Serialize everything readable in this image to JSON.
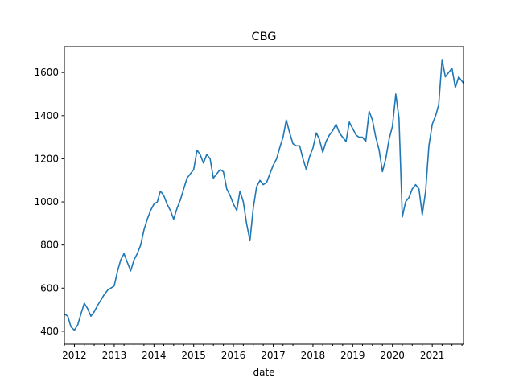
{
  "chart_data": {
    "type": "line",
    "title": "CBG",
    "xlabel": "date",
    "ylabel": "",
    "x_tick_labels": [
      "2012",
      "2013",
      "2014",
      "2015",
      "2016",
      "2017",
      "2018",
      "2019",
      "2020",
      "2021"
    ],
    "x_tick_dates": [
      "2012-01-01",
      "2013-01-01",
      "2014-01-01",
      "2015-01-01",
      "2016-01-01",
      "2017-01-01",
      "2018-01-01",
      "2019-01-01",
      "2020-01-01",
      "2021-01-01"
    ],
    "y_ticks": [
      400,
      600,
      800,
      1000,
      1200,
      1400,
      1600
    ],
    "xlim": [
      "2011-10-01",
      "2021-10-15"
    ],
    "ylim": [
      340,
      1720
    ],
    "grid": false,
    "colors": {
      "series": "#1f77b4"
    },
    "series": [
      {
        "name": "",
        "x": [
          "2011-10-01",
          "2011-11-01",
          "2011-12-01",
          "2012-01-01",
          "2012-02-01",
          "2012-03-01",
          "2012-04-01",
          "2012-05-01",
          "2012-06-01",
          "2012-07-01",
          "2012-08-01",
          "2012-09-01",
          "2012-10-01",
          "2012-11-01",
          "2012-12-01",
          "2013-01-01",
          "2013-02-01",
          "2013-03-01",
          "2013-04-01",
          "2013-05-01",
          "2013-06-01",
          "2013-07-01",
          "2013-08-01",
          "2013-09-01",
          "2013-10-01",
          "2013-11-01",
          "2013-12-01",
          "2014-01-01",
          "2014-02-01",
          "2014-03-01",
          "2014-04-01",
          "2014-05-01",
          "2014-06-01",
          "2014-07-01",
          "2014-08-01",
          "2014-09-01",
          "2014-10-01",
          "2014-11-01",
          "2014-12-01",
          "2015-01-01",
          "2015-02-01",
          "2015-03-01",
          "2015-04-01",
          "2015-05-01",
          "2015-06-01",
          "2015-07-01",
          "2015-08-01",
          "2015-09-01",
          "2015-10-01",
          "2015-11-01",
          "2015-12-01",
          "2016-01-01",
          "2016-02-01",
          "2016-03-01",
          "2016-04-01",
          "2016-05-01",
          "2016-06-01",
          "2016-07-01",
          "2016-08-01",
          "2016-09-01",
          "2016-10-01",
          "2016-11-01",
          "2016-12-01",
          "2017-01-01",
          "2017-02-01",
          "2017-03-01",
          "2017-04-01",
          "2017-05-01",
          "2017-06-01",
          "2017-07-01",
          "2017-08-01",
          "2017-09-01",
          "2017-10-01",
          "2017-11-01",
          "2017-12-01",
          "2018-01-01",
          "2018-02-01",
          "2018-03-01",
          "2018-04-01",
          "2018-05-01",
          "2018-06-01",
          "2018-07-01",
          "2018-08-01",
          "2018-09-01",
          "2018-10-01",
          "2018-11-01",
          "2018-12-01",
          "2019-01-01",
          "2019-02-01",
          "2019-03-01",
          "2019-04-01",
          "2019-05-01",
          "2019-06-01",
          "2019-07-01",
          "2019-08-01",
          "2019-09-01",
          "2019-10-01",
          "2019-11-01",
          "2019-12-01",
          "2020-01-01",
          "2020-02-01",
          "2020-03-01",
          "2020-04-01",
          "2020-05-01",
          "2020-06-01",
          "2020-07-01",
          "2020-08-01",
          "2020-09-01",
          "2020-10-01",
          "2020-11-01",
          "2020-12-01",
          "2021-01-01",
          "2021-02-01",
          "2021-03-01",
          "2021-04-01",
          "2021-05-01",
          "2021-06-01",
          "2021-07-01",
          "2021-08-01",
          "2021-09-01",
          "2021-10-15"
        ],
        "y": [
          480,
          470,
          420,
          405,
          430,
          480,
          530,
          505,
          470,
          490,
          520,
          545,
          570,
          590,
          600,
          610,
          680,
          730,
          760,
          720,
          680,
          730,
          760,
          800,
          870,
          920,
          960,
          990,
          1000,
          1050,
          1030,
          990,
          960,
          920,
          970,
          1010,
          1060,
          1110,
          1130,
          1150,
          1240,
          1220,
          1180,
          1220,
          1200,
          1110,
          1130,
          1150,
          1140,
          1060,
          1030,
          990,
          960,
          1050,
          1000,
          900,
          820,
          970,
          1070,
          1100,
          1080,
          1090,
          1130,
          1170,
          1200,
          1250,
          1300,
          1380,
          1320,
          1270,
          1260,
          1260,
          1200,
          1150,
          1210,
          1250,
          1320,
          1290,
          1230,
          1280,
          1310,
          1330,
          1360,
          1320,
          1300,
          1280,
          1370,
          1340,
          1310,
          1300,
          1300,
          1280,
          1420,
          1380,
          1300,
          1240,
          1140,
          1200,
          1290,
          1350,
          1500,
          1390,
          930,
          1000,
          1020,
          1060,
          1080,
          1060,
          940,
          1050,
          1260,
          1360,
          1400,
          1450,
          1660,
          1580,
          1600,
          1620,
          1530,
          1580,
          1550
        ]
      }
    ]
  }
}
